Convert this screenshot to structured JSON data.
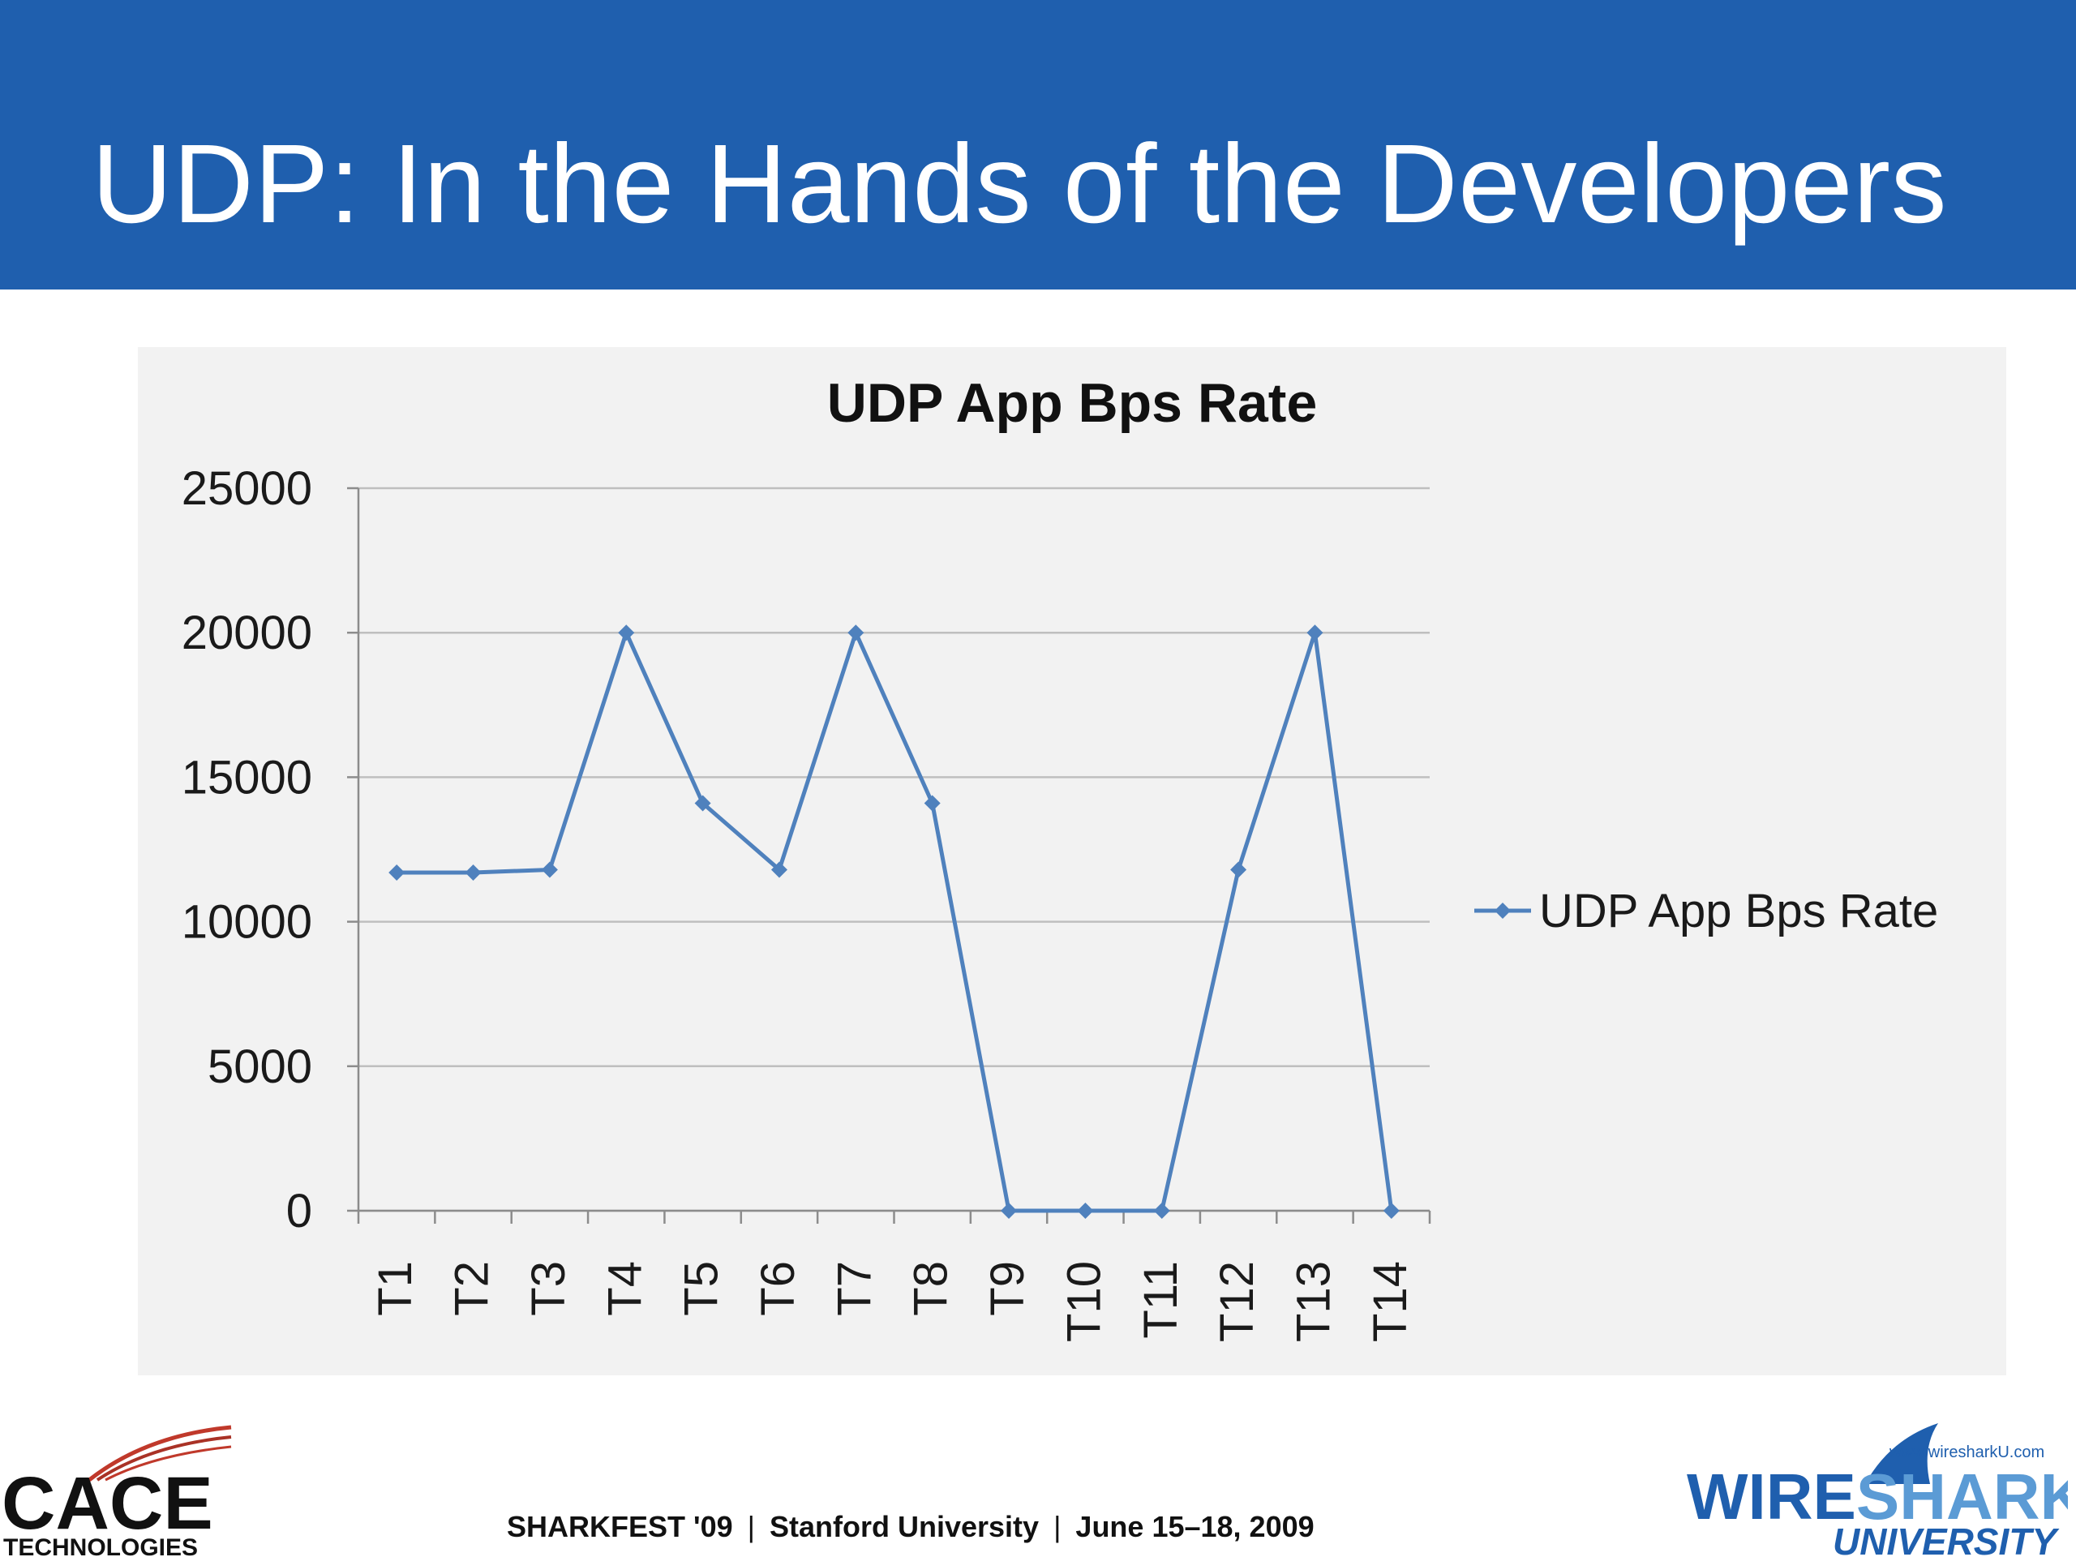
{
  "slide": {
    "title": "UDP: In the Hands of the Developers",
    "footer": {
      "event": "SHARKFEST '09",
      "venue": "Stanford University",
      "dates": "June 15–18, 2009",
      "separator": "|"
    },
    "logos": {
      "left": {
        "name": "CACE",
        "sub": "TECHNOLOGIES"
      },
      "right": {
        "name_a": "WIRE",
        "name_b": "SHARK",
        "sub": "UNIVERSITY",
        "url": "www.wiresharkU.com"
      }
    }
  },
  "colors": {
    "banner": "#1f5fae",
    "series": "#4f81bd",
    "plot_bg": "#f2f2f2",
    "gridline": "#bfbfbf"
  },
  "chart_data": {
    "type": "line",
    "title": "UDP App Bps Rate",
    "xlabel": "",
    "ylabel": "",
    "categories": [
      "T1",
      "T2",
      "T3",
      "T4",
      "T5",
      "T6",
      "T7",
      "T8",
      "T9",
      "T10",
      "T11",
      "T12",
      "T13",
      "T14"
    ],
    "series": [
      {
        "name": "UDP App Bps Rate",
        "values": [
          11700,
          11700,
          11800,
          20000,
          14100,
          11800,
          20000,
          14100,
          0,
          0,
          0,
          11800,
          20000,
          0
        ]
      }
    ],
    "ylim": [
      0,
      25000
    ],
    "yticks": [
      "0",
      "5000",
      "10000",
      "15000",
      "20000",
      "25000"
    ],
    "grid": true,
    "legend": "right"
  }
}
